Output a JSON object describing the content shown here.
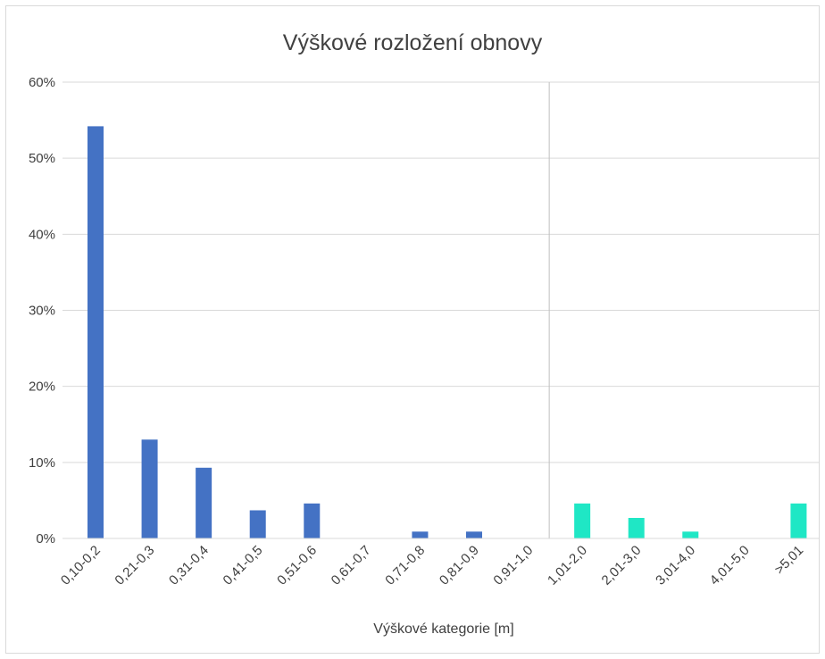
{
  "chart_data": {
    "type": "bar",
    "title": "Výškové rozložení obnovy",
    "xlabel": "Výškové kategorie [m]",
    "ylabel": "",
    "ylim": [
      0,
      0.6
    ],
    "y_ticks": [
      0,
      0.1,
      0.2,
      0.3,
      0.4,
      0.5,
      0.6
    ],
    "y_tick_labels": [
      "0%",
      "10%",
      "20%",
      "30%",
      "40%",
      "50%",
      "60%"
    ],
    "categories": [
      "0,10-0,2",
      "0,21-0,3",
      "0,31-0,4",
      "0,41-0,5",
      "0,51-0,6",
      "0,61-0,7",
      "0,71-0,8",
      "0,81-0,9",
      "0,91-1,0",
      "1,01-2,0",
      "2,01-3,0",
      "3,01-4,0",
      "4,01-5,0",
      ">5,01"
    ],
    "values": [
      0.542,
      0.13,
      0.093,
      0.037,
      0.046,
      0,
      0.009,
      0.009,
      0,
      0.046,
      0.027,
      0.009,
      0,
      0.046
    ],
    "bar_colors": [
      "#4472c4",
      "#4472c4",
      "#4472c4",
      "#4472c4",
      "#4472c4",
      "#4472c4",
      "#4472c4",
      "#4472c4",
      "#4472c4",
      "#1fe7c5",
      "#1fe7c5",
      "#1fe7c5",
      "#1fe7c5",
      "#1fe7c5"
    ],
    "separator_between_categories": [
      "0,91-1,0",
      "1,01-2,0"
    ],
    "grid": true,
    "legend": "none"
  }
}
